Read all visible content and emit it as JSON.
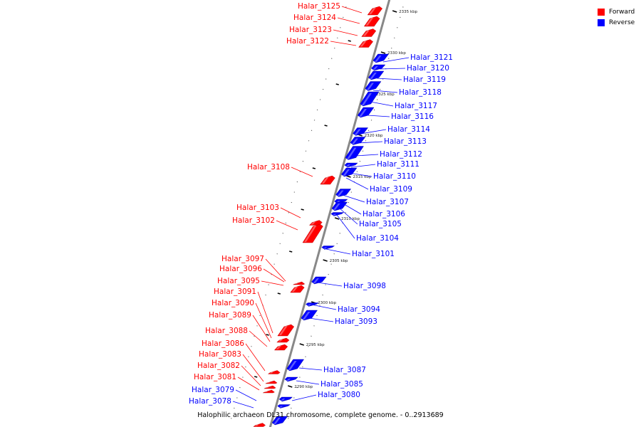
{
  "caption": "Halophilic archaeon DL31 chromosome, complete genome. - 0..2913689",
  "colors": {
    "forward": "#ff0000",
    "reverse": "#0000ff",
    "backbone": "#888888"
  },
  "legend": [
    {
      "label": "Forward",
      "color": "#ff0000"
    },
    {
      "label": "Reverse",
      "color": "#0000ff"
    }
  ],
  "ticks": [
    "2335 kbp",
    "2330 kbp",
    "2325 kbp",
    "2320 kbp",
    "2315 kbp",
    "2310 kbp",
    "2305 kbp",
    "2300 kbp",
    "2295 kbp",
    "2290 kbp"
  ],
  "genes": [
    {
      "name": "Halar_3125",
      "strand": "forward"
    },
    {
      "name": "Halar_3124",
      "strand": "forward"
    },
    {
      "name": "Halar_3123",
      "strand": "forward"
    },
    {
      "name": "Halar_3122",
      "strand": "forward"
    },
    {
      "name": "Halar_3121",
      "strand": "reverse"
    },
    {
      "name": "Halar_3120",
      "strand": "reverse"
    },
    {
      "name": "Halar_3119",
      "strand": "reverse"
    },
    {
      "name": "Halar_3118",
      "strand": "reverse"
    },
    {
      "name": "Halar_3117",
      "strand": "reverse"
    },
    {
      "name": "Halar_3116",
      "strand": "reverse"
    },
    {
      "name": "Halar_3114",
      "strand": "reverse"
    },
    {
      "name": "Halar_3113",
      "strand": "reverse"
    },
    {
      "name": "Halar_3112",
      "strand": "reverse"
    },
    {
      "name": "Halar_3111",
      "strand": "reverse"
    },
    {
      "name": "Halar_3110",
      "strand": "reverse"
    },
    {
      "name": "Halar_3109",
      "strand": "reverse"
    },
    {
      "name": "Halar_3108",
      "strand": "forward"
    },
    {
      "name": "Halar_3107",
      "strand": "reverse"
    },
    {
      "name": "Halar_3106",
      "strand": "reverse"
    },
    {
      "name": "Halar_3105",
      "strand": "reverse"
    },
    {
      "name": "Halar_3104",
      "strand": "reverse"
    },
    {
      "name": "Halar_3103",
      "strand": "forward"
    },
    {
      "name": "Halar_3102",
      "strand": "forward"
    },
    {
      "name": "Halar_3101",
      "strand": "reverse"
    },
    {
      "name": "Halar_3097",
      "strand": "forward"
    },
    {
      "name": "Halar_3096",
      "strand": "forward"
    },
    {
      "name": "Halar_3095",
      "strand": "forward"
    },
    {
      "name": "Halar_3098",
      "strand": "reverse"
    },
    {
      "name": "Halar_3091",
      "strand": "forward"
    },
    {
      "name": "Halar_3090",
      "strand": "forward"
    },
    {
      "name": "Halar_3094",
      "strand": "reverse"
    },
    {
      "name": "Halar_3089",
      "strand": "forward"
    },
    {
      "name": "Halar_3093",
      "strand": "reverse"
    },
    {
      "name": "Halar_3088",
      "strand": "forward"
    },
    {
      "name": "Halar_3086",
      "strand": "forward"
    },
    {
      "name": "Halar_3083",
      "strand": "forward"
    },
    {
      "name": "Halar_3087",
      "strand": "reverse"
    },
    {
      "name": "Halar_3082",
      "strand": "forward"
    },
    {
      "name": "Halar_3081",
      "strand": "forward"
    },
    {
      "name": "Halar_3085",
      "strand": "reverse"
    },
    {
      "name": "Halar_3079",
      "strand": "reverse"
    },
    {
      "name": "Halar_3080",
      "strand": "reverse"
    },
    {
      "name": "Halar_3078",
      "strand": "reverse"
    }
  ]
}
